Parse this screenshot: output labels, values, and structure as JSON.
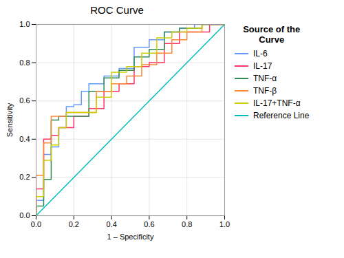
{
  "chart_data": {
    "type": "line",
    "title": "ROC Curve",
    "x_label": "1 – Specificity",
    "y_label": "Sensitivity",
    "legend_title": "Source of the\nCurve",
    "xlim": [
      0.0,
      1.0
    ],
    "ylim": [
      0.0,
      1.0
    ],
    "xticks": [
      {
        "value": 0.0,
        "label": "0.0"
      },
      0.2,
      0.4,
      0.6,
      0.8,
      {
        "value": 1.0,
        "label": "1.0"
      }
    ],
    "yticks": [
      {
        "value": 0.0,
        "label": "0.0"
      },
      0.2,
      0.4,
      0.6,
      0.8,
      {
        "value": 1.0,
        "label": "1.0"
      }
    ],
    "grid": true,
    "legend": "right",
    "series": [
      {
        "name": "IL-6",
        "color": "#6699ff",
        "x": [
          0.0,
          0.0,
          0.04,
          0.04,
          0.08,
          0.08,
          0.12,
          0.12,
          0.16,
          0.16,
          0.2,
          0.2,
          0.24,
          0.24,
          0.28,
          0.28,
          0.36,
          0.36,
          0.44,
          0.44,
          0.52,
          0.52,
          0.6,
          0.6,
          0.68,
          0.68,
          0.76,
          0.76,
          0.84,
          0.84,
          0.92,
          0.92,
          1.0
        ],
        "values": [
          0.0,
          0.08,
          0.08,
          0.32,
          0.32,
          0.36,
          0.36,
          0.46,
          0.46,
          0.57,
          0.57,
          0.58,
          0.58,
          0.65,
          0.65,
          0.69,
          0.69,
          0.73,
          0.73,
          0.77,
          0.77,
          0.88,
          0.88,
          0.92,
          0.92,
          0.96,
          0.96,
          0.98,
          0.98,
          1.0,
          1.0,
          1.0,
          1.0
        ]
      },
      {
        "name": "IL-17",
        "color": "#ff3366",
        "x": [
          0.0,
          0.0,
          0.04,
          0.04,
          0.08,
          0.08,
          0.12,
          0.12,
          0.2,
          0.2,
          0.28,
          0.28,
          0.36,
          0.36,
          0.44,
          0.44,
          0.52,
          0.52,
          0.6,
          0.6,
          0.68,
          0.68,
          0.76,
          0.76,
          0.92,
          0.92,
          1.0
        ],
        "values": [
          0.0,
          0.14,
          0.14,
          0.4,
          0.4,
          0.42,
          0.42,
          0.46,
          0.46,
          0.52,
          0.52,
          0.56,
          0.56,
          0.65,
          0.65,
          0.69,
          0.69,
          0.78,
          0.78,
          0.8,
          0.8,
          0.9,
          0.9,
          0.96,
          0.96,
          1.0,
          1.0
        ]
      },
      {
        "name": "TNF-α",
        "color": "#2e8b57",
        "x": [
          0.0,
          0.0,
          0.04,
          0.04,
          0.08,
          0.08,
          0.12,
          0.12,
          0.2,
          0.2,
          0.28,
          0.28,
          0.36,
          0.36,
          0.44,
          0.44,
          0.52,
          0.52,
          0.6,
          0.6,
          0.68,
          0.68,
          0.76,
          0.76,
          0.88,
          0.88,
          0.96,
          0.96,
          1.0
        ],
        "values": [
          0.0,
          0.05,
          0.05,
          0.19,
          0.19,
          0.5,
          0.5,
          0.52,
          0.52,
          0.52,
          0.52,
          0.65,
          0.65,
          0.72,
          0.72,
          0.76,
          0.76,
          0.83,
          0.83,
          0.87,
          0.87,
          0.96,
          0.96,
          0.98,
          0.98,
          1.0,
          1.0,
          1.0,
          1.0
        ]
      },
      {
        "name": "TNF-β",
        "color": "#ff8833",
        "x": [
          0.0,
          0.0,
          0.04,
          0.04,
          0.08,
          0.08,
          0.16,
          0.16,
          0.24,
          0.24,
          0.32,
          0.32,
          0.4,
          0.4,
          0.48,
          0.48,
          0.56,
          0.56,
          0.64,
          0.64,
          0.72,
          0.72,
          0.8,
          0.8,
          0.88,
          0.88,
          1.0
        ],
        "values": [
          0.0,
          0.21,
          0.21,
          0.38,
          0.38,
          0.52,
          0.52,
          0.54,
          0.54,
          0.54,
          0.54,
          0.65,
          0.65,
          0.69,
          0.69,
          0.73,
          0.73,
          0.79,
          0.79,
          0.85,
          0.85,
          0.92,
          0.92,
          0.96,
          0.96,
          1.0,
          1.0
        ]
      },
      {
        "name": "IL-17+TNF-α",
        "color": "#cccc00",
        "x": [
          0.0,
          0.0,
          0.04,
          0.04,
          0.08,
          0.08,
          0.12,
          0.12,
          0.16,
          0.16,
          0.24,
          0.24,
          0.32,
          0.32,
          0.4,
          0.4,
          0.48,
          0.48,
          0.56,
          0.56,
          0.64,
          0.64,
          0.72,
          0.72,
          0.8,
          0.8,
          0.88,
          0.88,
          1.0
        ],
        "values": [
          0.0,
          0.1,
          0.1,
          0.29,
          0.29,
          0.37,
          0.37,
          0.46,
          0.46,
          0.54,
          0.54,
          0.54,
          0.54,
          0.62,
          0.62,
          0.75,
          0.75,
          0.78,
          0.78,
          0.85,
          0.85,
          0.93,
          0.93,
          0.96,
          0.96,
          0.98,
          0.98,
          1.0,
          1.0
        ]
      },
      {
        "name": "Reference Line",
        "color": "#00bbbb",
        "x": [
          0.0,
          1.0
        ],
        "values": [
          0.0,
          1.0
        ]
      }
    ]
  }
}
